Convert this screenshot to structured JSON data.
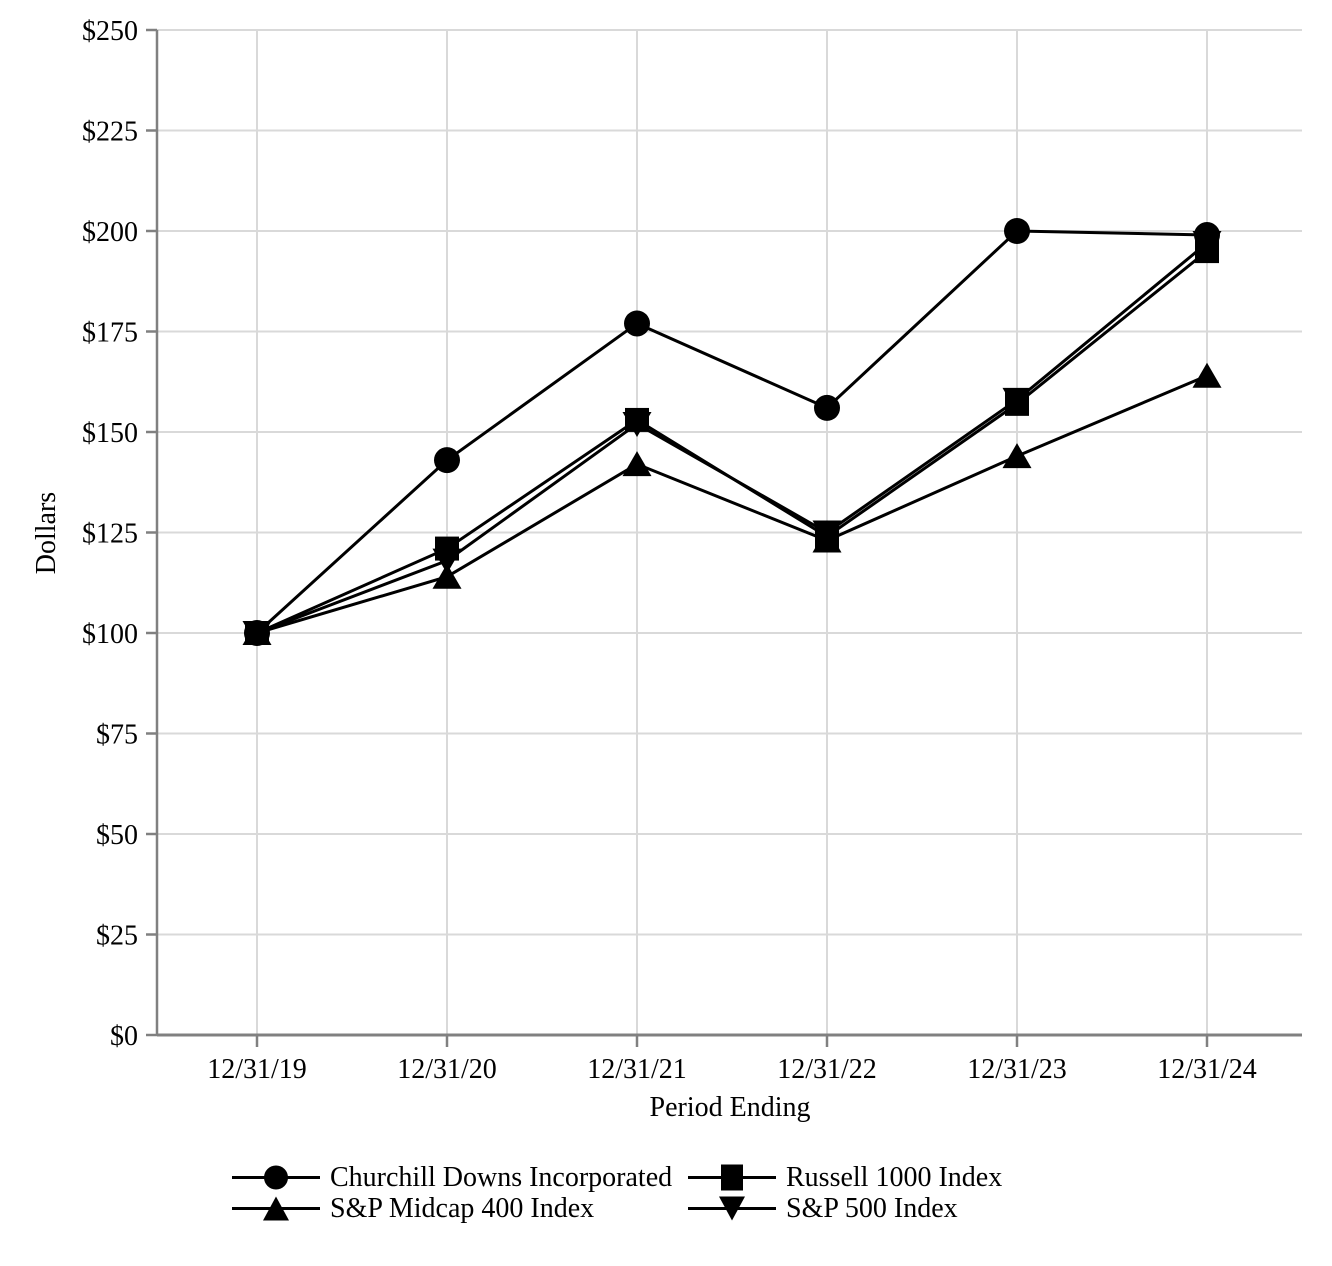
{
  "chart_data": {
    "type": "line",
    "title": "",
    "xlabel": "Period Ending",
    "ylabel": "Dollars",
    "categories": [
      "12/31/19",
      "12/31/20",
      "12/31/21",
      "12/31/22",
      "12/31/23",
      "12/31/24"
    ],
    "y_ticks": [
      0,
      25,
      50,
      75,
      100,
      125,
      150,
      175,
      200,
      225,
      250
    ],
    "y_tick_labels": [
      "$0",
      "$25",
      "$50",
      "$75",
      "$100",
      "$125",
      "$150",
      "$175",
      "$200",
      "$225",
      "$250"
    ],
    "ylim": [
      0,
      250
    ],
    "grid": true,
    "legend_position": "bottom",
    "series": [
      {
        "name": "Churchill Downs Incorporated",
        "marker": "circle",
        "values": [
          100,
          143,
          177,
          156,
          200,
          199
        ]
      },
      {
        "name": "Russell 1000 Index",
        "marker": "square",
        "values": [
          100,
          121,
          153,
          124,
          157,
          195
        ]
      },
      {
        "name": "S&P Midcap 400 Index",
        "marker": "triangle-up",
        "values": [
          100,
          114,
          142,
          123,
          144,
          164
        ]
      },
      {
        "name": "S&P 500 Index",
        "marker": "triangle-down",
        "values": [
          100,
          118,
          152,
          125,
          158,
          197
        ]
      }
    ],
    "colors": {
      "series": "#000000",
      "grid": "#d9d9d9",
      "axis": "#808080",
      "text": "#000000",
      "background": "#ffffff"
    }
  }
}
